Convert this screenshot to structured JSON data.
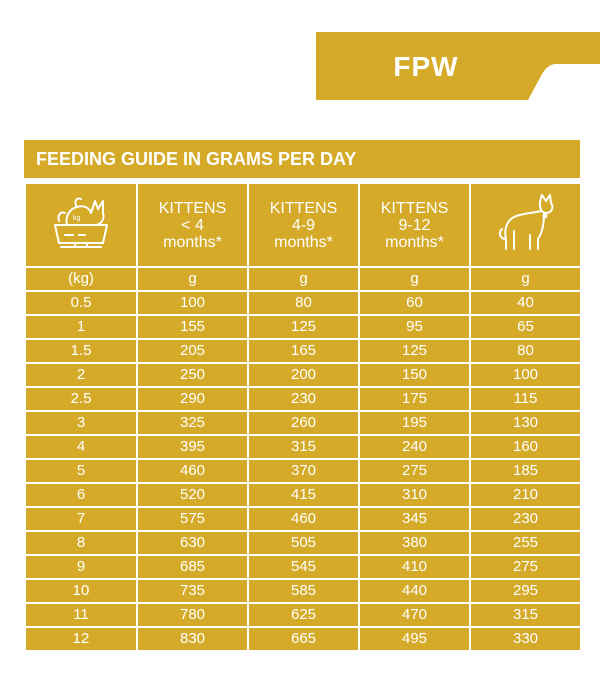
{
  "header_tab": {
    "label": "FPW"
  },
  "guide": {
    "title": "FEEDING GUIDE IN GRAMS PER DAY",
    "col_icons": {
      "weight_icon": "cat-on-scale-icon",
      "adult_icon": "sitting-cat-icon"
    },
    "columns": [
      {
        "line1": "KITTENS",
        "line2": "< 4",
        "line3": "months*"
      },
      {
        "line1": "KITTENS",
        "line2": "4-9",
        "line3": "months*"
      },
      {
        "line1": "KITTENS",
        "line2": "9-12",
        "line3": "months*"
      }
    ],
    "units": [
      "(kg)",
      "g",
      "g",
      "g",
      "g"
    ],
    "rows": [
      [
        "0.5",
        "100",
        "80",
        "60",
        "40"
      ],
      [
        "1",
        "155",
        "125",
        "95",
        "65"
      ],
      [
        "1.5",
        "205",
        "165",
        "125",
        "80"
      ],
      [
        "2",
        "250",
        "200",
        "150",
        "100"
      ],
      [
        "2.5",
        "290",
        "230",
        "175",
        "115"
      ],
      [
        "3",
        "325",
        "260",
        "195",
        "130"
      ],
      [
        "4",
        "395",
        "315",
        "240",
        "160"
      ],
      [
        "5",
        "460",
        "370",
        "275",
        "185"
      ],
      [
        "6",
        "520",
        "415",
        "310",
        "210"
      ],
      [
        "7",
        "575",
        "460",
        "345",
        "230"
      ],
      [
        "8",
        "630",
        "505",
        "380",
        "255"
      ],
      [
        "9",
        "685",
        "545",
        "410",
        "275"
      ],
      [
        "10",
        "735",
        "585",
        "440",
        "295"
      ],
      [
        "11",
        "780",
        "625",
        "470",
        "315"
      ],
      [
        "12",
        "830",
        "665",
        "495",
        "330"
      ]
    ]
  },
  "colors": {
    "gold": "#d4aa28",
    "text": "#ffffff"
  }
}
